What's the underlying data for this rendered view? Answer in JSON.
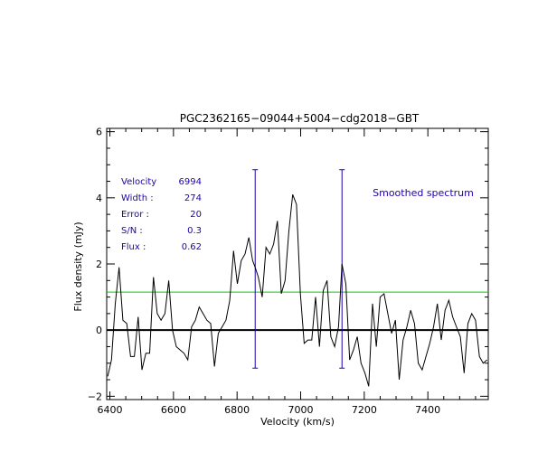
{
  "chart_data": {
    "type": "line",
    "title": "PGC2362165−09044+5004−cdg2018−GBT",
    "xlabel": "Velocity (km/s)",
    "ylabel": "Flux density (mJy)",
    "xlim": [
      6390,
      7590
    ],
    "ylim": [
      -2.1,
      6.1
    ],
    "x_ticks": [
      "6400",
      "6600",
      "6800",
      "7000",
      "7200",
      "7400"
    ],
    "y_ticks": [
      "−2",
      "0",
      "2",
      "4",
      "6"
    ],
    "annotation": "Smoothed spectrum",
    "stats": [
      {
        "label": "Velocity",
        "value": "6994"
      },
      {
        "label": "Width :",
        "value": "274"
      },
      {
        "label": "Error :",
        "value": "20"
      },
      {
        "label": "S/N :",
        "value": "0.3"
      },
      {
        "label": "Flux :",
        "value": "0.62"
      }
    ],
    "threshold": 1.15,
    "baseline": 0,
    "markers": [
      {
        "x": 6857,
        "y_top": 4.85,
        "y_bottom": -1.15
      },
      {
        "x": 7130,
        "y_top": 4.85,
        "y_bottom": -1.15
      }
    ],
    "colors": {
      "spectrum": "#000000",
      "threshold": "#00cc00",
      "markers": "#2200aa",
      "text_blue": "#2200aa"
    },
    "series": [
      {
        "x": [
          6393,
          6405,
          6417,
          6429,
          6441,
          6453,
          6465,
          6477,
          6489,
          6501,
          6513,
          6525,
          6537,
          6549,
          6561,
          6573,
          6585,
          6597,
          6609,
          6621,
          6633,
          6645,
          6657,
          6669,
          6681,
          6693,
          6705,
          6717,
          6729,
          6741,
          6753,
          6765,
          6777,
          6789,
          6801,
          6813,
          6825,
          6837,
          6849,
          6857,
          6867,
          6879,
          6891,
          6903,
          6915,
          6927,
          6939,
          6951,
          6963,
          6975,
          6987,
          6999,
          7011,
          7023,
          7035,
          7047,
          7059,
          7071,
          7083,
          7095,
          7107,
          7119,
          7130,
          7142,
          7154,
          7166,
          7178,
          7190,
          7202,
          7214,
          7226,
          7238,
          7250,
          7262,
          7274,
          7286,
          7298,
          7310,
          7322,
          7334,
          7346,
          7358,
          7370,
          7382,
          7394,
          7406,
          7418,
          7430,
          7442,
          7454,
          7466,
          7478,
          7490,
          7502,
          7514,
          7526,
          7538,
          7550,
          7562,
          7574,
          7586
        ],
        "y": [
          -1.4,
          -0.9,
          0.8,
          1.9,
          0.3,
          0.2,
          -0.8,
          -0.8,
          0.4,
          -1.2,
          -0.7,
          -0.7,
          1.6,
          0.5,
          0.3,
          0.5,
          1.5,
          0,
          -0.5,
          -0.6,
          -0.7,
          -0.9,
          0.1,
          0.3,
          0.7,
          0.5,
          0.3,
          0.2,
          -1.1,
          -0.1,
          0.1,
          0.3,
          0.9,
          2.4,
          1.4,
          2.1,
          2.3,
          2.8,
          2.1,
          1.9,
          1.6,
          1.0,
          2.5,
          2.3,
          2.6,
          3.3,
          1.1,
          1.5,
          3.0,
          4.1,
          3.8,
          1.1,
          -0.4,
          -0.3,
          -0.3,
          1.0,
          -0.5,
          1.2,
          1.5,
          -0.2,
          -0.5,
          0.1,
          2.0,
          1.4,
          -0.9,
          -0.6,
          -0.2,
          -1.0,
          -1.3,
          -1.7,
          0.8,
          -0.5,
          1.0,
          1.1,
          0.5,
          -0.1,
          0.3,
          -1.5,
          -0.3,
          0.1,
          0.6,
          0.2,
          -1.0,
          -1.2,
          -0.8,
          -0.4,
          0.1,
          0.8,
          -0.3,
          0.6,
          0.9,
          0.4,
          0.1,
          -0.2,
          -1.3,
          0.2,
          0.5,
          0.3,
          -0.8,
          -1.0,
          -0.9
        ]
      }
    ]
  }
}
